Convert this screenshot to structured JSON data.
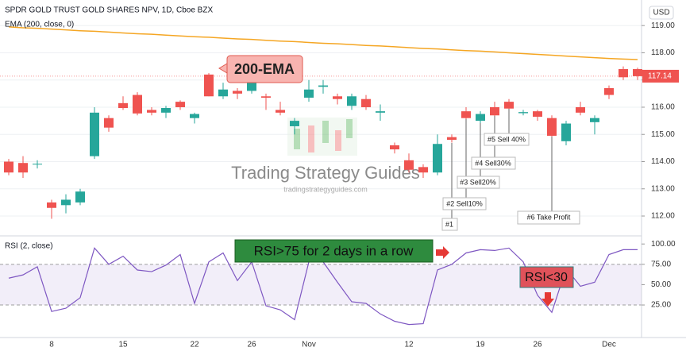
{
  "chart_data": [
    {
      "type": "candlestick",
      "title": "SPDR GOLD TRUST GOLD SHARES NPV, 1D, Cboe BZX",
      "currency": "USD",
      "categories": [
        null,
        null,
        null,
        "8",
        null,
        null,
        null,
        null,
        "15",
        null,
        null,
        null,
        null,
        "22",
        null,
        null,
        null,
        "26",
        null,
        null,
        null,
        "Nov",
        null,
        null,
        null,
        null,
        null,
        null,
        "12",
        null,
        null,
        null,
        null,
        "19",
        null,
        null,
        null,
        "26",
        null,
        null,
        null,
        null,
        "Dec",
        null,
        null
      ],
      "open": [
        114.0,
        113.95,
        113.9,
        112.5,
        112.4,
        112.5,
        114.2,
        115.6,
        116.15,
        116.45,
        115.9,
        115.8,
        116.2,
        115.6,
        117.2,
        116.4,
        116.6,
        116.6,
        116.4,
        115.9,
        115.3,
        116.35,
        116.75,
        116.4,
        116.05,
        116.3,
        115.8,
        114.6,
        114.05,
        113.8,
        113.6,
        114.9,
        115.85,
        115.5,
        116.0,
        116.2,
        115.78,
        115.85,
        115.6,
        114.75,
        116.0,
        115.45,
        116.7,
        117.4,
        117.4
      ],
      "high": [
        114.1,
        114.2,
        114.05,
        112.6,
        112.8,
        113.0,
        116.0,
        115.7,
        116.4,
        116.55,
        116.0,
        116.05,
        116.25,
        115.8,
        117.25,
        116.9,
        116.7,
        117.4,
        116.5,
        116.2,
        115.6,
        117.0,
        117.0,
        116.5,
        116.5,
        116.45,
        116.1,
        114.7,
        114.3,
        113.9,
        115.0,
        115.0,
        116.0,
        115.85,
        116.2,
        116.3,
        115.9,
        115.9,
        115.7,
        115.5,
        116.2,
        115.7,
        116.8,
        117.5,
        117.45
      ],
      "low": [
        113.5,
        113.4,
        113.75,
        111.9,
        112.1,
        112.4,
        114.1,
        115.1,
        115.9,
        115.7,
        115.7,
        115.6,
        115.9,
        115.4,
        116.4,
        116.3,
        116.3,
        116.5,
        115.9,
        115.7,
        115.0,
        116.2,
        116.5,
        116.1,
        115.9,
        115.9,
        115.5,
        114.3,
        113.6,
        113.4,
        113.5,
        114.7,
        115.3,
        115.4,
        115.5,
        115.8,
        115.7,
        115.5,
        114.9,
        114.6,
        115.7,
        115.0,
        116.3,
        117.0,
        117.0
      ],
      "close": [
        113.6,
        113.6,
        113.92,
        112.3,
        112.6,
        112.9,
        115.8,
        115.25,
        115.97,
        115.77,
        115.8,
        115.97,
        116.0,
        115.75,
        116.4,
        116.65,
        116.5,
        117.1,
        116.35,
        115.8,
        115.5,
        116.65,
        116.8,
        116.3,
        116.4,
        116.0,
        115.85,
        114.45,
        113.7,
        113.6,
        114.65,
        114.8,
        115.6,
        115.75,
        115.7,
        115.95,
        115.82,
        115.65,
        114.95,
        115.4,
        115.8,
        115.6,
        116.45,
        117.1,
        117.14
      ],
      "up_color": "#26a69a",
      "down_color": "#ef5350",
      "series": [
        {
          "name": "EMA (200, close, 0)",
          "color": "#f5a623",
          "values": [
            118.95,
            118.92,
            118.9,
            118.87,
            118.84,
            118.81,
            118.79,
            118.76,
            118.73,
            118.7,
            118.68,
            118.65,
            118.62,
            118.59,
            118.57,
            118.54,
            118.51,
            118.49,
            118.46,
            118.43,
            118.41,
            118.38,
            118.35,
            118.33,
            118.3,
            118.27,
            118.25,
            118.22,
            118.19,
            118.16,
            118.14,
            118.11,
            118.08,
            118.06,
            118.03,
            118.0,
            117.97,
            117.94,
            117.91,
            117.88,
            117.85,
            117.82,
            117.79,
            117.77,
            117.75
          ]
        }
      ],
      "ylim": [
        111.3,
        119.94
      ],
      "yticks": [
        {
          "value": 112,
          "label": "112.00"
        },
        {
          "value": 113,
          "label": "113.00"
        },
        {
          "value": 114,
          "label": "114.00"
        },
        {
          "value": 115,
          "label": "115.00"
        },
        {
          "value": 116,
          "label": "116.00"
        },
        {
          "value": 117,
          "label": "117.00"
        },
        {
          "value": 118,
          "label": "118.00"
        },
        {
          "value": 119,
          "label": "119.00"
        }
      ],
      "grid": true,
      "annotations": [
        "200-EMA",
        "#1",
        "#2 Sell10%",
        "#3 Sell20%",
        "#4 Sell30%",
        "#5 Sell 40%",
        "#6 Take Profit"
      ],
      "watermark": [
        "Trading Strategy Guides",
        "tradingstrategyguides.com"
      ]
    },
    {
      "type": "line",
      "title": "RSI (2, close)",
      "series": [
        {
          "name": "RSI (2, close)",
          "color": "#7e57c2",
          "values": [
            58,
            62,
            72,
            17,
            21,
            34,
            95,
            75,
            85,
            68,
            66,
            74,
            87,
            27,
            78,
            89,
            55,
            78,
            24,
            19,
            7,
            78,
            78,
            53,
            29,
            27,
            14,
            5,
            1,
            2,
            68,
            75,
            89,
            93,
            92,
            95,
            78,
            37,
            16,
            70,
            48,
            53,
            87,
            93,
            93
          ]
        }
      ],
      "band": [
        25,
        75
      ],
      "band_color": "#7e57c2",
      "ylim": [
        -15,
        109
      ],
      "yticks": [
        {
          "value": 25,
          "label": "25.00"
        },
        {
          "value": 50,
          "label": "50.00"
        },
        {
          "value": 75,
          "label": "75.00"
        },
        {
          "value": 100,
          "label": "100.00"
        }
      ],
      "annotations": [
        "RSI>75 for 2 days in a row",
        "RSI<30"
      ]
    }
  ]
}
